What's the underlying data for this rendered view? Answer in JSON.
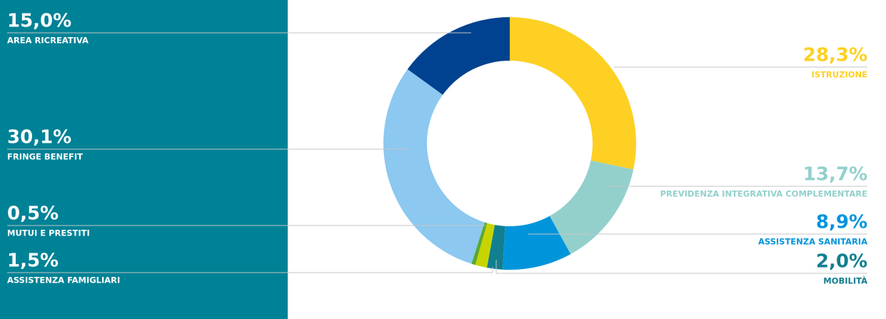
{
  "chart_data": {
    "type": "donut",
    "categories": [
      "ISTRUZIONE",
      "PREVIDENZA INTEGRATIVA COMPLEMENTARE",
      "ASSISTENZA SANITARIA",
      "MOBILITÀ",
      "ASSISTENZA FAMIGLIARI",
      "MUTUI E PRESTITI",
      "FRINGE BENEFIT",
      "AREA RICREATIVA"
    ],
    "values": [
      28.3,
      13.7,
      8.9,
      2.0,
      1.5,
      0.5,
      30.1,
      15.0
    ],
    "value_labels": [
      "28,3%",
      "13,7%",
      "8,9%",
      "2,0%",
      "1,5%",
      "0,5%",
      "30,1%",
      "15,0%"
    ],
    "colors": [
      "#fdd023",
      "#93d0cc",
      "#0095db",
      "#117f8f",
      "#c8d400",
      "#5aa830",
      "#8cc8f0",
      "#00428f"
    ]
  }
}
